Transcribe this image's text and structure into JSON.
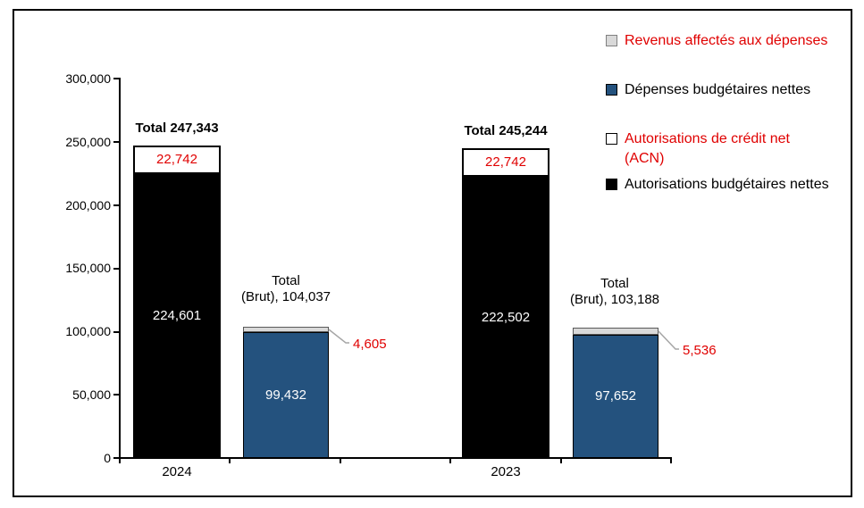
{
  "legend": {
    "items": [
      {
        "label": "Revenus affectés aux dépenses"
      },
      {
        "label": "Dépenses budgétaires nettes"
      },
      {
        "label": "Autorisations de crédit net (ACN)"
      },
      {
        "label": "Autorisations budgétaires nettes"
      }
    ]
  },
  "chart": {
    "y_ticks": [
      "300,000",
      "250,000",
      "200,000",
      "150,000",
      "100,000",
      "50,000",
      "0"
    ],
    "groups": [
      {
        "year": "2024",
        "auth_total": "Total 247,343",
        "auth_acn": "22,742",
        "auth_net": "224,601",
        "brut_line1": "Total",
        "brut_line2": "(Brut), 104,037",
        "dep_net": "99,432",
        "dep_rev": "4,605"
      },
      {
        "year": "2023",
        "auth_total": "Total 245,244",
        "auth_acn": "22,742",
        "auth_net": "222,502",
        "brut_line1": "Total",
        "brut_line2": "(Brut), 103,188",
        "dep_net": "97,652",
        "dep_rev": "5,536"
      }
    ]
  },
  "chart_data": {
    "type": "bar",
    "subtype": "grouped-stacked",
    "categories": [
      "2024",
      "2023"
    ],
    "series": [
      {
        "name": "Autorisations budgétaires nettes",
        "values": [
          224601,
          222502
        ],
        "color": "#000000"
      },
      {
        "name": "Autorisations de crédit net (ACN)",
        "values": [
          22742,
          22742
        ],
        "color": "#FFFFFF"
      },
      {
        "name": "Dépenses budgétaires nettes",
        "values": [
          99432,
          97652
        ],
        "color": "#24527E"
      },
      {
        "name": "Revenus affectés aux dépenses",
        "values": [
          4605,
          5536
        ],
        "color": "#D9D9D9"
      }
    ],
    "totals": {
      "autorisations": [
        247343,
        245244
      ],
      "depenses_brut": [
        104037,
        103188
      ]
    },
    "title": "",
    "xlabel": "",
    "ylabel": "",
    "ylim": [
      0,
      300000
    ],
    "y_tick_step": 50000,
    "grid": false,
    "legend_position": "right",
    "accent_red": "#E00000",
    "leader_line_color": "#A6A6A6"
  }
}
